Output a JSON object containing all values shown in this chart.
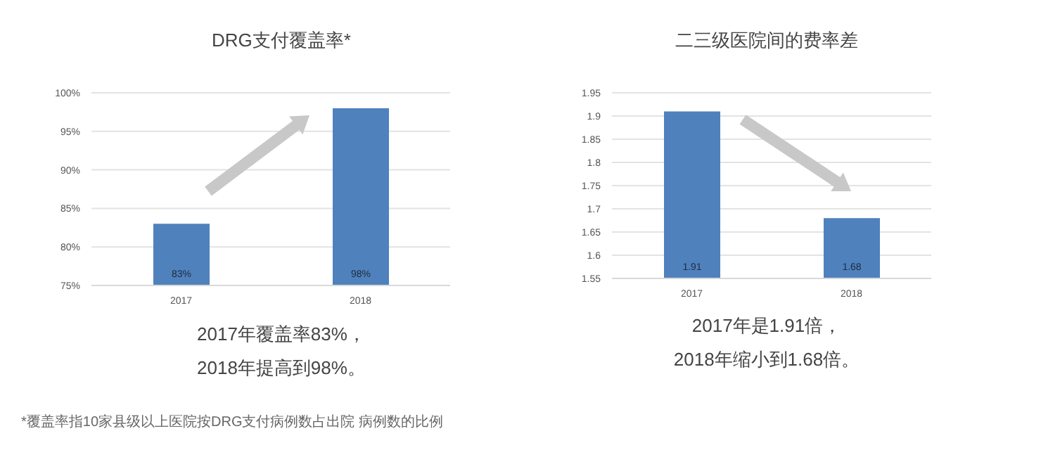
{
  "chart_data": [
    {
      "type": "bar",
      "title": "DRG支付覆盖率*",
      "categories": [
        "2017",
        "2018"
      ],
      "values": [
        83,
        98
      ],
      "color": "#4f81bd",
      "value_labels": [
        "83%",
        "98%"
      ],
      "ylim": [
        75,
        100
      ],
      "yticks": [
        {
          "value": 75,
          "label": "75%"
        },
        {
          "value": 80,
          "label": "80%"
        },
        {
          "value": 85,
          "label": "85%"
        },
        {
          "value": 90,
          "label": "90%"
        },
        {
          "value": 95,
          "label": "95%"
        },
        {
          "value": 100,
          "label": "100%"
        }
      ],
      "grid": "y",
      "legend": false,
      "annotations": [
        "2017年覆盖率83%，",
        "2018年提高到98%。",
        "*覆盖率指10家县级以上医院按DRG支付病例数占出院 病例数的比例"
      ]
    },
    {
      "type": "bar",
      "title": "二三级医院间的费率差",
      "categories": [
        "2017",
        "2018"
      ],
      "values": [
        1.91,
        1.68
      ],
      "color": "#4f81bd",
      "data_labels": true,
      "ylim": [
        1.55,
        1.95
      ],
      "yticks": [
        1.55,
        1.6,
        1.65,
        1.7,
        1.75,
        1.8,
        1.85,
        1.9,
        1.95
      ],
      "grid": "y",
      "legend": false,
      "annotations": [
        "2017年是1.91倍，",
        "2018年缩小到1.68倍。"
      ]
    }
  ]
}
